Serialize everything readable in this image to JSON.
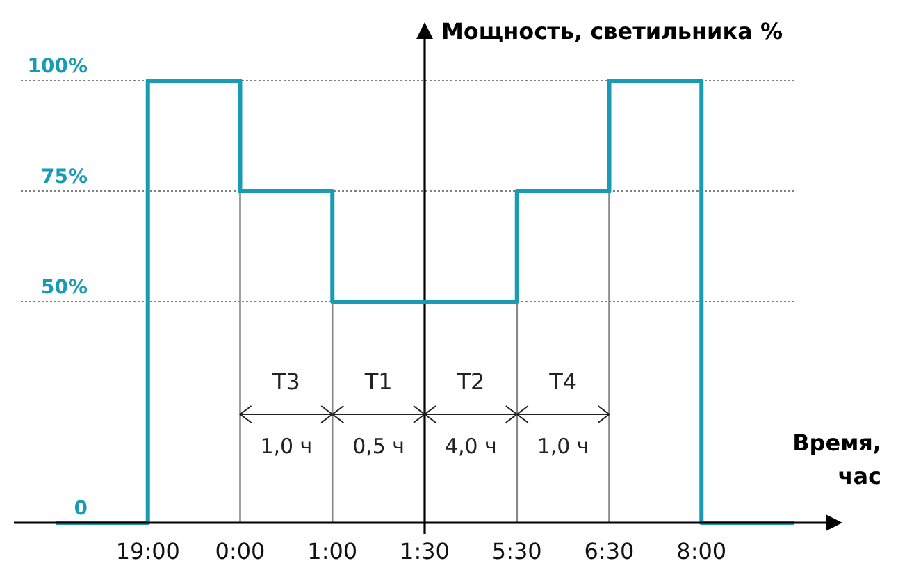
{
  "chart_data": {
    "type": "step",
    "xlabel": "Время, час",
    "ylabel": "Мощность, светильника %",
    "categories": [
      null,
      "19:00",
      "0:00",
      "1:00",
      "1:30",
      "5:30",
      "6:30",
      "8:00",
      null
    ],
    "series": [
      {
        "color": "#1a9bb4",
        "values": [
          0,
          100,
          75,
          50,
          50,
          75,
          100,
          0,
          0
        ]
      }
    ],
    "ylim": [
      0,
      100
    ],
    "yticks": [
      {
        "value": 0,
        "label": "0"
      },
      {
        "value": 50,
        "label": "50%"
      },
      {
        "value": 75,
        "label": "75%"
      },
      {
        "value": 100,
        "label": "100%"
      }
    ],
    "grid": "y",
    "marker": "none",
    "ref_lines": [
      {
        "axis": "x",
        "value": "1:30",
        "color": "#000000"
      },
      {
        "axis": "x",
        "value": "0:00",
        "color": "#888888"
      },
      {
        "axis": "x",
        "value": "1:00",
        "color": "#888888"
      },
      {
        "axis": "x",
        "value": "5:30",
        "color": "#888888"
      },
      {
        "axis": "x",
        "value": "6:30",
        "color": "#888888"
      }
    ],
    "annotations": [
      "T3",
      "1,0 ч",
      "T1",
      "0,5 ч",
      "T2",
      "4,0 ч",
      "T4",
      "1,0 ч"
    ]
  }
}
